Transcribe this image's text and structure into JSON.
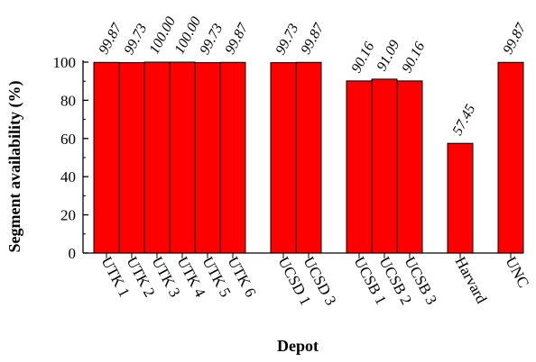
{
  "chart_data": {
    "type": "bar",
    "categories": [
      "UTK 1",
      "UTK 2",
      "UTK 3",
      "UTK 4",
      "UTK 5",
      "UTK 6",
      "UCSD 1",
      "UCSD 3",
      "UCSB 1",
      "UCSB 2",
      "UCSB 3",
      "Harvard",
      "UNC"
    ],
    "groups": [
      [
        "UTK 1",
        "UTK 2",
        "UTK 3",
        "UTK 4",
        "UTK 5",
        "UTK 6"
      ],
      [
        "UCSD 1",
        "UCSD 3"
      ],
      [
        "UCSB 1",
        "UCSB 2",
        "UCSB 3"
      ],
      [
        "Harvard"
      ],
      [
        "UNC"
      ]
    ],
    "values": [
      99.87,
      99.73,
      100.0,
      100.0,
      99.73,
      99.87,
      99.73,
      99.87,
      90.16,
      91.09,
      90.16,
      57.45,
      99.87
    ],
    "value_labels": [
      "99.87",
      "99.73",
      "100.00",
      "100.00",
      "99.73",
      "99.87",
      "99.73",
      "99.87",
      "90.16",
      "91.09",
      "90.16",
      "57.45",
      "99.87"
    ],
    "xlabel": "Depot",
    "ylabel": "Segment availability (%)",
    "ylim": [
      0,
      100
    ],
    "yticks": [
      0,
      20,
      40,
      60,
      80,
      100
    ],
    "grid": false,
    "bar_color": "#ff0000",
    "bar_edge_color": "#000000"
  }
}
